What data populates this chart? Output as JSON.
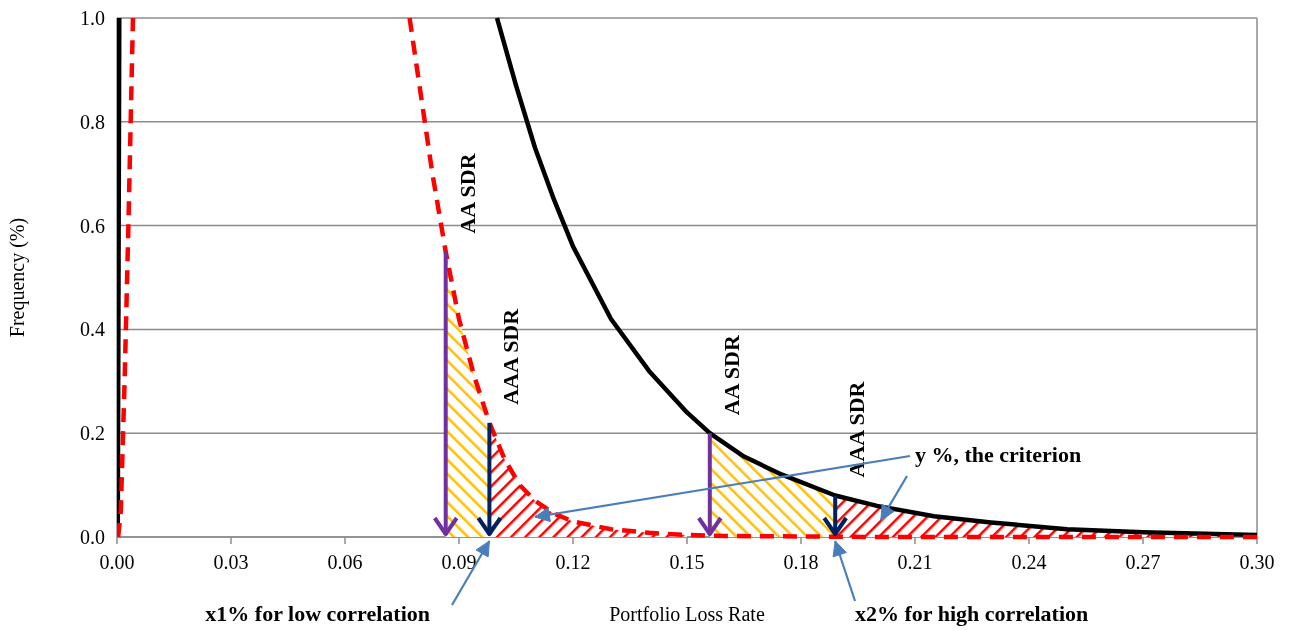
{
  "chart_data": {
    "type": "line",
    "xlabel": "Portfolio Loss Rate",
    "ylabel": "Frequency (%)",
    "xlim": [
      0,
      0.3
    ],
    "ylim": [
      0,
      1.0
    ],
    "xticks": [
      {
        "value": 0,
        "label": "0.00"
      },
      {
        "value": 0.03,
        "label": "0.03"
      },
      {
        "value": 0.06,
        "label": "0.06"
      },
      {
        "value": 0.09,
        "label": "0.09"
      },
      {
        "value": 0.12,
        "label": "0.12"
      },
      {
        "value": 0.15,
        "label": "0.15"
      },
      {
        "value": 0.18,
        "label": "0.18"
      },
      {
        "value": 0.21,
        "label": "0.21"
      },
      {
        "value": 0.24,
        "label": "0.24"
      },
      {
        "value": 0.27,
        "label": "0.27"
      },
      {
        "value": 0.3,
        "label": "0.30"
      }
    ],
    "yticks": [
      {
        "value": 0,
        "label": "0.0"
      },
      {
        "value": 0.2,
        "label": "0.2"
      },
      {
        "value": 0.4,
        "label": "0.4"
      },
      {
        "value": 0.6,
        "label": "0.6"
      },
      {
        "value": 0.8,
        "label": "0.8"
      },
      {
        "value": 1.0,
        "label": "1.0"
      }
    ],
    "grid": "y",
    "series": [
      {
        "type": "area",
        "color": "#ffc000",
        "x": [
          0.0865,
          0.09,
          0.094,
          0.098
        ],
        "values": [
          0.55,
          0.42,
          0.31,
          0.22
        ]
      },
      {
        "type": "area",
        "color": "#ff0000",
        "x": [
          0.098,
          0.102,
          0.106,
          0.11,
          0.115,
          0.12,
          0.13,
          0.14,
          0.15
        ],
        "values": [
          0.22,
          0.15,
          0.1,
          0.07,
          0.045,
          0.03,
          0.015,
          0.008,
          0.004
        ]
      },
      {
        "type": "area",
        "color": "#ffc000",
        "x": [
          0.156,
          0.165,
          0.175,
          0.189
        ],
        "values": [
          0.2,
          0.155,
          0.12,
          0.08
        ]
      },
      {
        "type": "area",
        "color": "#ff0000",
        "x": [
          0.189,
          0.2,
          0.215,
          0.23,
          0.25,
          0.27,
          0.3
        ],
        "values": [
          0.08,
          0.06,
          0.04,
          0.028,
          0.015,
          0.009,
          0.004
        ]
      },
      {
        "color": "#000000",
        "line_style": "solid",
        "x": [
          0.0002,
          0.0006
        ],
        "values": [
          0,
          1.0
        ]
      },
      {
        "color": "#000000",
        "line_style": "solid",
        "x": [
          0.1,
          0.105,
          0.11,
          0.115,
          0.12,
          0.13,
          0.14,
          0.15,
          0.156,
          0.165,
          0.175,
          0.189,
          0.2,
          0.215,
          0.23,
          0.25,
          0.27,
          0.3
        ],
        "values": [
          1.0,
          0.87,
          0.75,
          0.65,
          0.56,
          0.42,
          0.32,
          0.24,
          0.2,
          0.155,
          0.12,
          0.08,
          0.06,
          0.04,
          0.028,
          0.015,
          0.009,
          0.004
        ]
      },
      {
        "color": "#ff0000",
        "line_style": "dashed",
        "x": [
          0.0003,
          0.001,
          0.002,
          0.003,
          0.0042
        ],
        "values": [
          0,
          0.05,
          0.3,
          0.6,
          1.0
        ]
      },
      {
        "color": "#ff0000",
        "line_style": "dashed",
        "x": [
          0.077,
          0.08,
          0.083,
          0.0865,
          0.09,
          0.094,
          0.098,
          0.102,
          0.106,
          0.11,
          0.115,
          0.12,
          0.13,
          0.14,
          0.15,
          0.16,
          0.18,
          0.2,
          0.25,
          0.3
        ],
        "values": [
          1.0,
          0.85,
          0.7,
          0.55,
          0.42,
          0.31,
          0.22,
          0.15,
          0.1,
          0.07,
          0.045,
          0.03,
          0.015,
          0.008,
          0.004,
          0.002,
          0.001,
          0,
          0,
          0
        ]
      }
    ],
    "ref_lines": [
      {
        "axis": "x",
        "value": 0.0865,
        "label": "AA SDR",
        "color": "#7030a0"
      },
      {
        "axis": "x",
        "value": 0.098,
        "label": "AAA SDR",
        "color": "#002060"
      },
      {
        "axis": "x",
        "value": 0.156,
        "label": "AA SDR",
        "color": "#7030a0"
      },
      {
        "axis": "x",
        "value": 0.189,
        "label": "AAA SDR",
        "color": "#002060"
      }
    ],
    "annotations": [
      "y %, the criterion",
      {
        "text": "x1% for low correlation",
        "x": 0.098,
        "y": 0
      },
      {
        "text": "x2% for high correlation",
        "x": 0.189,
        "y": 0
      }
    ]
  }
}
